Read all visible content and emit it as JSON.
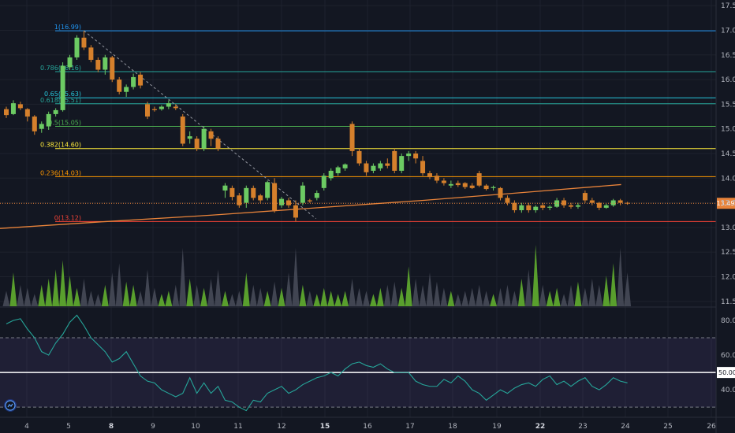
{
  "chart_data": {
    "type": "candlestick",
    "price_axis": {
      "ticks": [
        "17.50",
        "17.00",
        "16.50",
        "16.00",
        "15.50",
        "15.00",
        "14.50",
        "14.00",
        "13.50",
        "13.00",
        "12.50",
        "12.00",
        "11.50"
      ],
      "range": [
        11.45,
        17.55
      ]
    },
    "x_axis": {
      "ticks": [
        {
          "label": "4",
          "bold": false
        },
        {
          "label": "5",
          "bold": false
        },
        {
          "label": "8",
          "bold": true
        },
        {
          "label": "9",
          "bold": false
        },
        {
          "label": "10",
          "bold": false
        },
        {
          "label": "11",
          "bold": false
        },
        {
          "label": "12",
          "bold": false
        },
        {
          "label": "15",
          "bold": true
        },
        {
          "label": "16",
          "bold": false
        },
        {
          "label": "17",
          "bold": false
        },
        {
          "label": "18",
          "bold": false
        },
        {
          "label": "19",
          "bold": false
        },
        {
          "label": "22",
          "bold": true
        },
        {
          "label": "23",
          "bold": false
        },
        {
          "label": "24",
          "bold": false
        },
        {
          "label": "25",
          "bold": false
        },
        {
          "label": "26",
          "bold": false
        }
      ]
    },
    "fib_levels": [
      {
        "label": "1(16.99)",
        "value": 16.99,
        "color": "#2196f3"
      },
      {
        "label": "0.786(16.16)",
        "value": 16.16,
        "color": "#26a69a"
      },
      {
        "label": "0.65(15.63)",
        "value": 15.63,
        "color": "#26c6da"
      },
      {
        "label": "0.618(15.51)",
        "value": 15.51,
        "color": "#26a69a"
      },
      {
        "label": "0.5(15.05)",
        "value": 15.05,
        "color": "#4caf50"
      },
      {
        "label": "0.382(14.60)",
        "value": 14.6,
        "color": "#ffeb3b"
      },
      {
        "label": "0.236(14.03)",
        "value": 14.03,
        "color": "#ff9800"
      },
      {
        "label": "0(13.12)",
        "value": 13.12,
        "color": "#f44336"
      }
    ],
    "current_price": {
      "label": "13.49",
      "value": 13.49
    },
    "ohlc": [
      [
        15.4,
        15.45,
        15.22,
        15.28
      ],
      [
        15.3,
        15.58,
        15.28,
        15.52
      ],
      [
        15.5,
        15.55,
        15.38,
        15.42
      ],
      [
        15.4,
        15.42,
        15.15,
        15.25
      ],
      [
        15.25,
        15.28,
        14.88,
        14.95
      ],
      [
        15.0,
        15.15,
        14.92,
        15.1
      ],
      [
        15.05,
        15.35,
        14.98,
        15.3
      ],
      [
        15.3,
        15.42,
        15.25,
        15.38
      ],
      [
        15.38,
        16.35,
        15.35,
        16.28
      ],
      [
        16.25,
        16.5,
        16.2,
        16.45
      ],
      [
        16.45,
        16.9,
        16.4,
        16.85
      ],
      [
        16.85,
        16.99,
        16.6,
        16.65
      ],
      [
        16.65,
        16.7,
        16.35,
        16.4
      ],
      [
        16.4,
        16.45,
        16.15,
        16.2
      ],
      [
        16.2,
        16.5,
        16.1,
        16.45
      ],
      [
        16.45,
        16.48,
        15.95,
        16.0
      ],
      [
        16.0,
        16.05,
        15.7,
        15.75
      ],
      [
        15.75,
        15.9,
        15.65,
        15.85
      ],
      [
        15.85,
        16.12,
        15.8,
        16.05
      ],
      [
        16.1,
        16.15,
        15.82,
        15.88
      ],
      [
        15.5,
        15.55,
        15.2,
        15.25
      ],
      [
        15.4,
        15.45,
        15.35,
        15.38
      ],
      [
        15.4,
        15.48,
        15.37,
        15.45
      ],
      [
        15.45,
        15.58,
        15.4,
        15.52
      ],
      [
        15.45,
        15.5,
        15.38,
        15.42
      ],
      [
        15.25,
        15.3,
        14.65,
        14.7
      ],
      [
        14.8,
        14.95,
        14.7,
        14.85
      ],
      [
        14.8,
        14.85,
        14.55,
        14.6
      ],
      [
        14.6,
        15.05,
        14.55,
        15.0
      ],
      [
        14.95,
        15.0,
        14.65,
        14.8
      ],
      [
        14.8,
        14.85,
        14.55,
        14.6
      ],
      [
        13.75,
        13.9,
        13.6,
        13.85
      ],
      [
        13.8,
        13.85,
        13.55,
        13.62
      ],
      [
        13.65,
        13.7,
        13.4,
        13.45
      ],
      [
        13.5,
        13.85,
        13.4,
        13.8
      ],
      [
        13.8,
        13.85,
        13.55,
        13.6
      ],
      [
        13.65,
        13.68,
        13.5,
        13.55
      ],
      [
        13.6,
        13.95,
        13.55,
        13.92
      ],
      [
        13.9,
        14.0,
        13.3,
        13.35
      ],
      [
        13.45,
        13.62,
        13.4,
        13.58
      ],
      [
        13.55,
        13.6,
        13.4,
        13.45
      ],
      [
        13.45,
        13.55,
        13.12,
        13.2
      ],
      [
        13.5,
        13.92,
        13.45,
        13.85
      ],
      [
        13.55,
        13.58,
        13.5,
        13.53
      ],
      [
        13.6,
        13.75,
        13.55,
        13.7
      ],
      [
        13.8,
        14.1,
        13.75,
        14.05
      ],
      [
        14.0,
        14.2,
        13.95,
        14.15
      ],
      [
        14.1,
        14.25,
        14.05,
        14.22
      ],
      [
        14.2,
        14.3,
        14.15,
        14.28
      ],
      [
        15.1,
        15.15,
        14.45,
        14.55
      ],
      [
        14.55,
        14.6,
        14.25,
        14.3
      ],
      [
        14.3,
        14.35,
        14.05,
        14.12
      ],
      [
        14.15,
        14.3,
        14.1,
        14.25
      ],
      [
        14.2,
        14.35,
        14.15,
        14.3
      ],
      [
        14.3,
        14.4,
        14.2,
        14.25
      ],
      [
        14.55,
        14.6,
        14.1,
        14.15
      ],
      [
        14.15,
        14.5,
        14.1,
        14.45
      ],
      [
        14.45,
        14.55,
        14.35,
        14.5
      ],
      [
        14.5,
        14.55,
        14.3,
        14.4
      ],
      [
        14.35,
        14.45,
        14.05,
        14.1
      ],
      [
        14.1,
        14.15,
        13.98,
        14.02
      ],
      [
        14.05,
        14.1,
        13.9,
        13.95
      ],
      [
        13.95,
        14.0,
        13.85,
        13.9
      ],
      [
        13.85,
        13.95,
        13.8,
        13.88
      ],
      [
        13.9,
        13.95,
        13.82,
        13.86
      ],
      [
        13.9,
        13.92,
        13.78,
        13.82
      ],
      [
        13.85,
        13.9,
        13.78,
        13.8
      ],
      [
        14.1,
        14.15,
        13.82,
        13.85
      ],
      [
        13.85,
        13.88,
        13.75,
        13.78
      ],
      [
        13.8,
        13.85,
        13.75,
        13.82
      ],
      [
        13.8,
        13.82,
        13.55,
        13.6
      ],
      [
        13.6,
        13.65,
        13.45,
        13.5
      ],
      [
        13.5,
        13.55,
        13.3,
        13.35
      ],
      [
        13.35,
        13.5,
        13.3,
        13.45
      ],
      [
        13.45,
        13.5,
        13.3,
        13.35
      ],
      [
        13.35,
        13.45,
        13.3,
        13.42
      ],
      [
        13.45,
        13.5,
        13.35,
        13.4
      ],
      [
        13.4,
        13.45,
        13.35,
        13.42
      ],
      [
        13.42,
        13.6,
        13.4,
        13.55
      ],
      [
        13.55,
        13.6,
        13.4,
        13.45
      ],
      [
        13.45,
        13.5,
        13.38,
        13.42
      ],
      [
        13.42,
        13.5,
        13.38,
        13.45
      ],
      [
        13.7,
        13.75,
        13.5,
        13.55
      ],
      [
        13.55,
        13.6,
        13.45,
        13.5
      ],
      [
        13.5,
        13.52,
        13.35,
        13.4
      ],
      [
        13.4,
        13.48,
        13.38,
        13.45
      ],
      [
        13.45,
        13.58,
        13.42,
        13.55
      ],
      [
        13.55,
        13.58,
        13.45,
        13.5
      ],
      [
        13.5,
        13.52,
        13.46,
        13.49
      ]
    ],
    "ma_line": [
      [
        0,
        12.98
      ],
      [
        15,
        13.12
      ],
      [
        30,
        13.25
      ],
      [
        45,
        13.4
      ],
      [
        60,
        13.55
      ],
      [
        75,
        13.72
      ],
      [
        88,
        13.87
      ]
    ],
    "volume": [
      0.25,
      0.55,
      0.35,
      0.3,
      0.2,
      0.35,
      0.45,
      0.6,
      0.75,
      0.5,
      0.3,
      0.45,
      0.25,
      0.2,
      0.35,
      0.55,
      0.7,
      0.4,
      0.35,
      0.25,
      0.6,
      0.3,
      0.2,
      0.25,
      0.35,
      0.95,
      0.45,
      0.35,
      0.3,
      0.45,
      0.6,
      0.25,
      0.2,
      0.25,
      0.55,
      0.35,
      0.3,
      0.25,
      0.4,
      0.3,
      0.55,
      0.95,
      0.35,
      0.25,
      0.2,
      0.3,
      0.25,
      0.2,
      0.25,
      0.45,
      0.3,
      0.25,
      0.2,
      0.3,
      0.35,
      0.4,
      0.3,
      0.65,
      0.45,
      0.35,
      0.55,
      0.4,
      0.3,
      0.25,
      0.2,
      0.25,
      0.3,
      0.35,
      0.25,
      0.2,
      0.3,
      0.35,
      0.25,
      0.45,
      0.6,
      1.0,
      0.35,
      0.25,
      0.3,
      0.2,
      0.35,
      0.4,
      0.3,
      0.45,
      0.35,
      0.5,
      0.7,
      0.95,
      0.55
    ],
    "rsi": {
      "ticks": [
        "80.00",
        "60.00",
        "50.00",
        "40.00"
      ],
      "range": [
        26,
        85
      ],
      "upper_band": 70,
      "lower_band": 30,
      "mid": 50,
      "label": "50.00",
      "values": [
        78,
        80,
        81,
        75,
        70,
        62,
        60,
        67,
        72,
        79,
        83,
        77,
        70,
        66,
        62,
        56,
        58,
        62,
        55,
        48,
        45,
        44,
        40,
        38,
        36,
        38,
        47,
        38,
        44,
        38,
        42,
        34,
        33,
        30,
        28,
        34,
        33,
        38,
        40,
        42,
        38,
        40,
        43,
        45,
        47,
        48,
        50,
        48,
        52,
        55,
        56,
        54,
        53,
        55,
        52,
        50,
        50,
        50,
        45,
        43,
        42,
        42,
        46,
        44,
        48,
        45,
        40,
        38,
        34,
        37,
        40,
        38,
        41,
        43,
        44,
        42,
        46,
        48,
        43,
        45,
        42,
        45,
        47,
        42,
        40,
        43,
        47,
        45,
        44
      ]
    }
  }
}
